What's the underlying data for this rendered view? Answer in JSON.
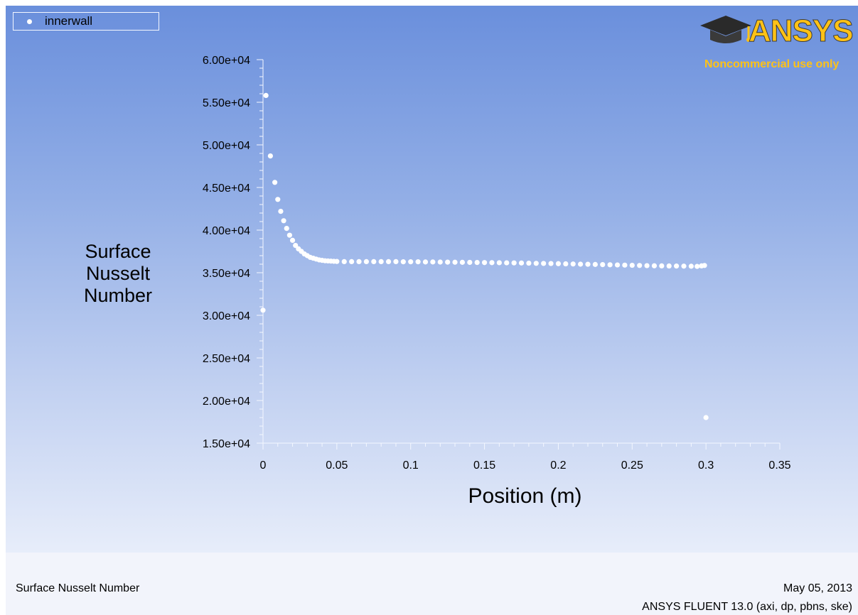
{
  "legend": {
    "entries": [
      {
        "label": "innerwall",
        "marker": "white-dot"
      }
    ]
  },
  "logo": {
    "wordmark": "ANSYS",
    "subtitle": "Noncommercial use only",
    "icon": "graduation-cap-icon",
    "color": "#ffc216"
  },
  "footer": {
    "left_text": "Surface Nusselt Number",
    "date": "May 05, 2013",
    "solver": "ANSYS FLUENT 13.0 (axi, dp, pbns, ske)"
  },
  "colors": {
    "background_top": "#6a8fdc",
    "background_bottom": "#e7edfa",
    "marker": "#ffffff",
    "legend_border": "#f4f7ff"
  },
  "chart_data": {
    "type": "scatter",
    "title": "",
    "xlabel": "Position (m)",
    "ylabel": "Surface Nusselt Number",
    "ylabel_lines": [
      "Surface",
      "Nusselt",
      "Number"
    ],
    "xlim": [
      0,
      0.35
    ],
    "ylim": [
      15000,
      60000
    ],
    "x_ticks": [
      0,
      0.05,
      0.1,
      0.15,
      0.2,
      0.25,
      0.3,
      0.35
    ],
    "x_tick_labels": [
      "0",
      "0.05",
      "0.1",
      "0.15",
      "0.2",
      "0.25",
      "0.3",
      "0.35"
    ],
    "y_ticks": [
      15000,
      20000,
      25000,
      30000,
      35000,
      40000,
      45000,
      50000,
      55000,
      60000
    ],
    "y_tick_labels": [
      "1.50e+04",
      "2.00e+04",
      "2.50e+04",
      "3.00e+04",
      "3.50e+04",
      "4.00e+04",
      "4.50e+04",
      "5.00e+04",
      "5.50e+04",
      "6.00e+04"
    ],
    "x_minor_per_major": 5,
    "y_minor_per_major": 5,
    "grid": false,
    "legend_position": "top-left",
    "series": [
      {
        "name": "innerwall",
        "x": [
          0.0,
          0.002,
          0.005,
          0.008,
          0.01,
          0.012,
          0.014,
          0.016,
          0.018,
          0.02,
          0.022,
          0.024,
          0.026,
          0.028,
          0.03,
          0.032,
          0.034,
          0.036,
          0.038,
          0.04,
          0.042,
          0.044,
          0.046,
          0.048,
          0.05,
          0.055,
          0.06,
          0.065,
          0.07,
          0.075,
          0.08,
          0.085,
          0.09,
          0.095,
          0.1,
          0.105,
          0.11,
          0.115,
          0.12,
          0.125,
          0.13,
          0.135,
          0.14,
          0.145,
          0.15,
          0.155,
          0.16,
          0.165,
          0.17,
          0.175,
          0.18,
          0.185,
          0.19,
          0.195,
          0.2,
          0.205,
          0.21,
          0.215,
          0.22,
          0.225,
          0.23,
          0.235,
          0.24,
          0.245,
          0.25,
          0.255,
          0.26,
          0.265,
          0.27,
          0.275,
          0.28,
          0.285,
          0.29,
          0.294,
          0.297,
          0.299,
          0.3
        ],
        "values": [
          30600,
          55800,
          48700,
          45600,
          43600,
          42200,
          41100,
          40200,
          39400,
          38800,
          38200,
          37800,
          37500,
          37200,
          37000,
          36800,
          36700,
          36600,
          36500,
          36450,
          36400,
          36380,
          36360,
          36340,
          36320,
          36300,
          36300,
          36300,
          36300,
          36300,
          36300,
          36300,
          36300,
          36280,
          36280,
          36280,
          36260,
          36260,
          36250,
          36240,
          36230,
          36220,
          36210,
          36200,
          36190,
          36180,
          36170,
          36160,
          36150,
          36140,
          36120,
          36100,
          36090,
          36080,
          36060,
          36040,
          36020,
          36000,
          35990,
          35970,
          35950,
          35930,
          35910,
          35890,
          35870,
          35850,
          35830,
          35810,
          35800,
          35790,
          35780,
          35770,
          35760,
          35740,
          35800,
          35850,
          18000
        ]
      }
    ]
  }
}
